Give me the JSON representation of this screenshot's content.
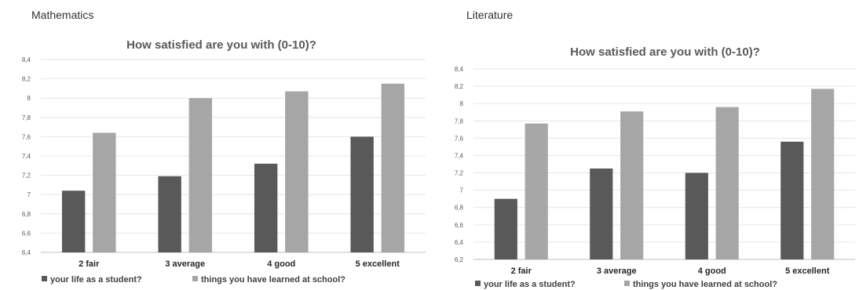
{
  "chart_data": [
    {
      "type": "bar",
      "subject": "Mathematics",
      "title": "How satisfied are you with (0-10)?",
      "categories": [
        "2 fair",
        "3 average",
        "4 good",
        "5 excellent"
      ],
      "series": [
        {
          "name": "your life as a student?",
          "values": [
            7.04,
            7.19,
            7.32,
            7.6
          ],
          "color": "#595959"
        },
        {
          "name": "things you have learned at school?",
          "values": [
            7.64,
            8.0,
            8.07,
            8.15
          ],
          "color": "#a6a6a6"
        }
      ],
      "ylim": [
        6.4,
        8.4
      ],
      "y_ticks": [
        "6,4",
        "6,6",
        "6,8",
        "7",
        "7,2",
        "7,4",
        "7,6",
        "7,8",
        "8",
        "8,2",
        "8,4"
      ],
      "grid": true,
      "legend": "bottom"
    },
    {
      "type": "bar",
      "subject": "Literature",
      "title": "How satisfied are you with (0-10)?",
      "categories": [
        "2 fair",
        "3 average",
        "4 good",
        "5 excellent"
      ],
      "series": [
        {
          "name": "your life as a student?",
          "values": [
            6.9,
            7.25,
            7.2,
            7.56
          ],
          "color": "#595959"
        },
        {
          "name": "things you have learned at school?",
          "values": [
            7.77,
            7.91,
            7.96,
            8.17
          ],
          "color": "#a6a6a6"
        }
      ],
      "ylim": [
        6.2,
        8.4
      ],
      "y_ticks": [
        "6,2",
        "6,4",
        "6,6",
        "6,8",
        "7",
        "7,2",
        "7,4",
        "7,6",
        "7,8",
        "8",
        "8,2",
        "8,4"
      ],
      "grid": true,
      "legend": "bottom"
    }
  ]
}
